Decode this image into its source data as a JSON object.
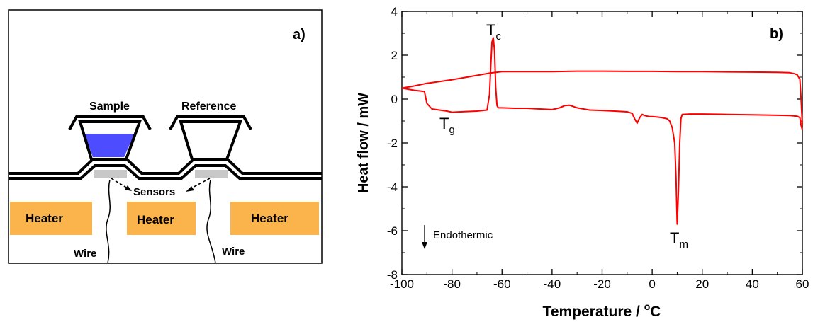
{
  "panel_a": {
    "panel_label": "a)",
    "sample_label": "Sample",
    "reference_label": "Reference",
    "sensors_label": "Sensors",
    "heater_labels": [
      "Heater",
      "Heater",
      "Heater"
    ],
    "wire_labels": [
      "Wire",
      "Wire"
    ],
    "colors": {
      "sample_fill": "#4d4dff",
      "heater": "#fbb34c",
      "sensor": "#c8c8c8",
      "outline": "#000000"
    }
  },
  "panel_b": {
    "panel_label": "b)",
    "xlabel": "Temperature / ",
    "xlabel_unit": "C",
    "xlabel_unit_superscript": "o",
    "ylabel": "Heat flow / mW",
    "annotations": {
      "tc": {
        "main": "T",
        "sub": "c"
      },
      "tg": {
        "main": "T",
        "sub": "g"
      },
      "tm": {
        "main": "T",
        "sub": "m"
      },
      "endothermic": "Endothermic"
    },
    "xticks": [
      "-100",
      "-80",
      "-60",
      "-40",
      "-20",
      "0",
      "20",
      "40",
      "60"
    ],
    "yticks": [
      "-8",
      "-6",
      "-4",
      "-2",
      "0",
      "2",
      "4"
    ],
    "line_color": "#ff0000"
  },
  "chart_data": {
    "type": "line",
    "title": "",
    "xlabel": "Temperature / oC",
    "ylabel": "Heat flow / mW",
    "xlim": [
      -100,
      60
    ],
    "ylim": [
      -8,
      4
    ],
    "grid": false,
    "series": [
      {
        "x": [
          -100,
          -95,
          -91,
          -90,
          -88,
          -85,
          -82,
          -80,
          -75,
          -70,
          -66,
          -65,
          -64.5,
          -64,
          -63.5,
          -63,
          -62.5,
          -62,
          -61.5,
          -60,
          -55,
          -50,
          -45,
          -40,
          -37,
          -35,
          -33,
          -30,
          -25,
          -20,
          -15,
          -10,
          -8,
          -7,
          -6,
          -5,
          -4,
          -3,
          -1,
          0,
          2,
          4,
          6,
          7,
          8,
          9,
          9.5,
          10,
          10.5,
          11,
          11.5,
          12,
          15,
          20,
          30,
          40,
          50,
          55,
          58,
          59,
          59.5,
          60
        ],
        "y": [
          0.5,
          0.4,
          0.35,
          -0.2,
          -0.45,
          -0.5,
          -0.55,
          -0.6,
          -0.57,
          -0.55,
          -0.5,
          0.2,
          1.5,
          2.6,
          2.8,
          2.2,
          0.5,
          -0.3,
          -0.4,
          -0.4,
          -0.42,
          -0.42,
          -0.45,
          -0.48,
          -0.4,
          -0.3,
          -0.28,
          -0.4,
          -0.5,
          -0.52,
          -0.55,
          -0.58,
          -0.65,
          -0.9,
          -1.1,
          -0.85,
          -0.7,
          -0.75,
          -0.8,
          -0.8,
          -0.82,
          -0.85,
          -0.9,
          -1.0,
          -1.3,
          -2.0,
          -3.5,
          -5.7,
          -4.2,
          -2.0,
          -0.9,
          -0.7,
          -0.68,
          -0.68,
          -0.7,
          -0.72,
          -0.74,
          -0.75,
          -0.78,
          -0.85,
          -1.2,
          -1.4
        ]
      },
      {
        "x": [
          -100,
          -95,
          -90,
          -85,
          -80,
          -75,
          -70,
          -65,
          -60,
          -50,
          -40,
          -30,
          -20,
          -10,
          0,
          10,
          20,
          30,
          40,
          50,
          55,
          57,
          58,
          59,
          59.5,
          60
        ],
        "y": [
          0.5,
          0.6,
          0.72,
          0.8,
          0.88,
          0.98,
          1.08,
          1.18,
          1.25,
          1.25,
          1.25,
          1.27,
          1.27,
          1.26,
          1.26,
          1.25,
          1.25,
          1.24,
          1.23,
          1.22,
          1.2,
          1.15,
          1.1,
          0.9,
          0.0,
          -1.2
        ]
      }
    ]
  }
}
